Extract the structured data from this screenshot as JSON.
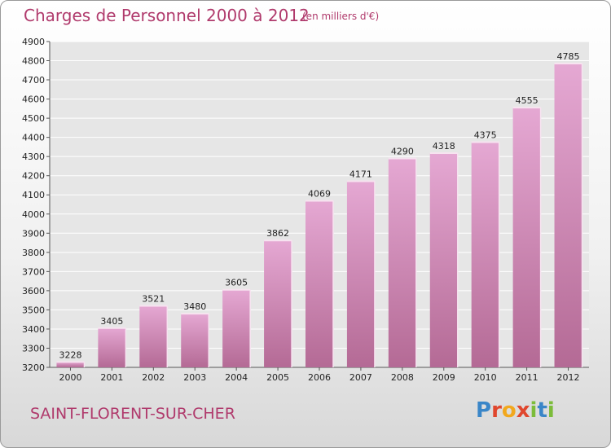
{
  "header": {
    "title": "Charges de Personnel 2000 à 2012",
    "subtitle": "(en milliers d'€)"
  },
  "footer": {
    "town": "SAINT-FLORENT-SUR-CHER",
    "logo_letters": [
      "P",
      "r",
      "o",
      "x",
      "i",
      "t",
      "i"
    ],
    "logo_colors": [
      "#3a86c8",
      "#e0472e",
      "#f2a81d",
      "#e0472e",
      "#7cbc3a",
      "#3a86c8",
      "#7cbc3a"
    ]
  },
  "colors": {
    "title": "#b03a6c",
    "bar_top": "#e5a8d3",
    "bar_bottom": "#b46a95",
    "bar_edge": "#f7e3f0",
    "plot_bg": "#e6e6e6",
    "grid": "#ffffff"
  },
  "chart_data": {
    "type": "bar",
    "title": "Charges de Personnel 2000 à 2012",
    "subtitle": "(en milliers d'€)",
    "categories": [
      "2000",
      "2001",
      "2002",
      "2003",
      "2004",
      "2005",
      "2006",
      "2007",
      "2008",
      "2009",
      "2010",
      "2011",
      "2012"
    ],
    "values": [
      3228,
      3405,
      3521,
      3480,
      3605,
      3862,
      4069,
      4171,
      4290,
      4318,
      4375,
      4555,
      4785
    ],
    "ylim": [
      3200,
      4900
    ],
    "ytick_step": 100,
    "grid": true,
    "legend": "none"
  }
}
